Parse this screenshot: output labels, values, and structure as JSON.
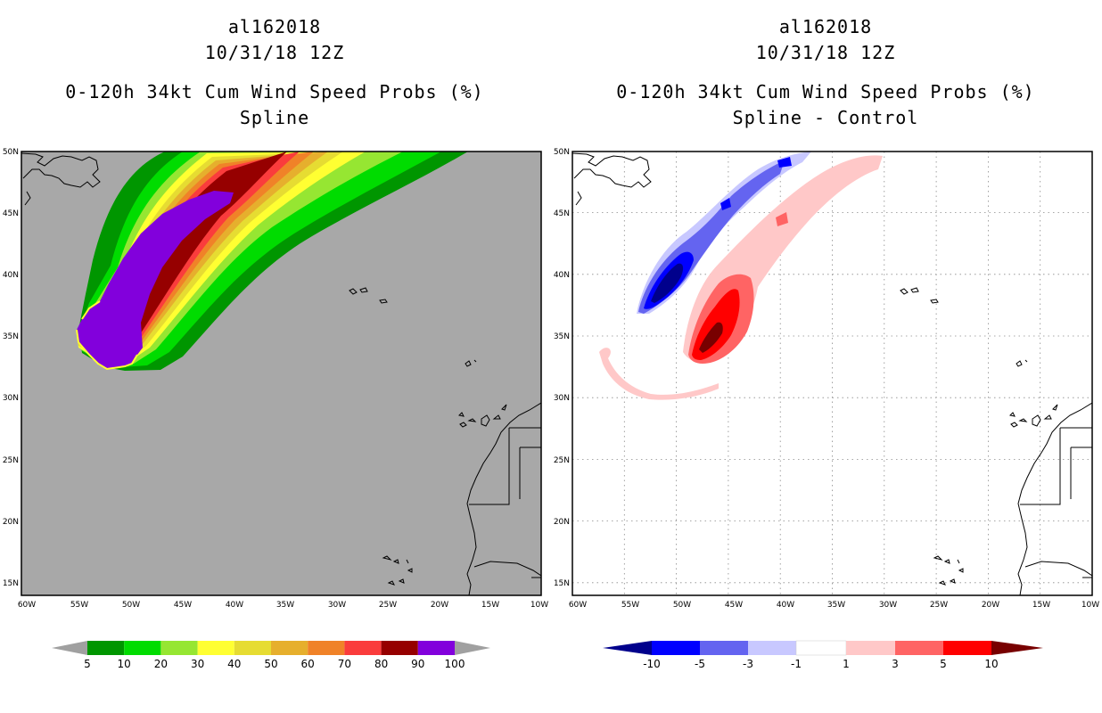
{
  "left": {
    "title_line1": "al162018",
    "title_line2": "10/31/18 12Z",
    "title_line3": "0-120h 34kt Cum Wind Speed Probs (%)",
    "title_line4": "Spline",
    "colorbar_labels": [
      "5",
      "10",
      "20",
      "30",
      "40",
      "50",
      "60",
      "70",
      "80",
      "90",
      "100"
    ],
    "colors": {
      "background": "#a8a8a8",
      "c5": "#009600",
      "c10": "#00dc00",
      "c20": "#96e632",
      "c30": "#ffff32",
      "c40": "#e6dc32",
      "c50": "#e6af2d",
      "c60": "#f08228",
      "c70": "#fa3c3c",
      "c80": "#960000",
      "c90": "#8200dc",
      "c100": "#a0a0a0"
    }
  },
  "right": {
    "title_line1": "al162018",
    "title_line2": "10/31/18 12Z",
    "title_line3": "0-120h 34kt Cum Wind Speed Probs (%)",
    "title_line4": "Spline - Control",
    "colorbar_labels": [
      "-10",
      "-5",
      "-3",
      "-1",
      "1",
      "3",
      "5",
      "10"
    ],
    "colors": {
      "blue_dark": "#00008c",
      "blue": "#0000ff",
      "blue_mid": "#6464f0",
      "blue_light": "#c8c8ff",
      "white": "#ffffff",
      "pink": "#ffc8c8",
      "red_light": "#ff6464",
      "red": "#ff0000",
      "red_dark": "#780000"
    }
  },
  "axes": {
    "lat_labels": [
      "50N",
      "45N",
      "40N",
      "35N",
      "30N",
      "25N",
      "20N",
      "15N"
    ],
    "lon_labels": [
      "60W",
      "55W",
      "50W",
      "45W",
      "40W",
      "35W",
      "30W",
      "25W",
      "20W",
      "15W",
      "10W"
    ],
    "lon_range": [
      -60,
      -10
    ],
    "lat_range": [
      14,
      50
    ]
  }
}
